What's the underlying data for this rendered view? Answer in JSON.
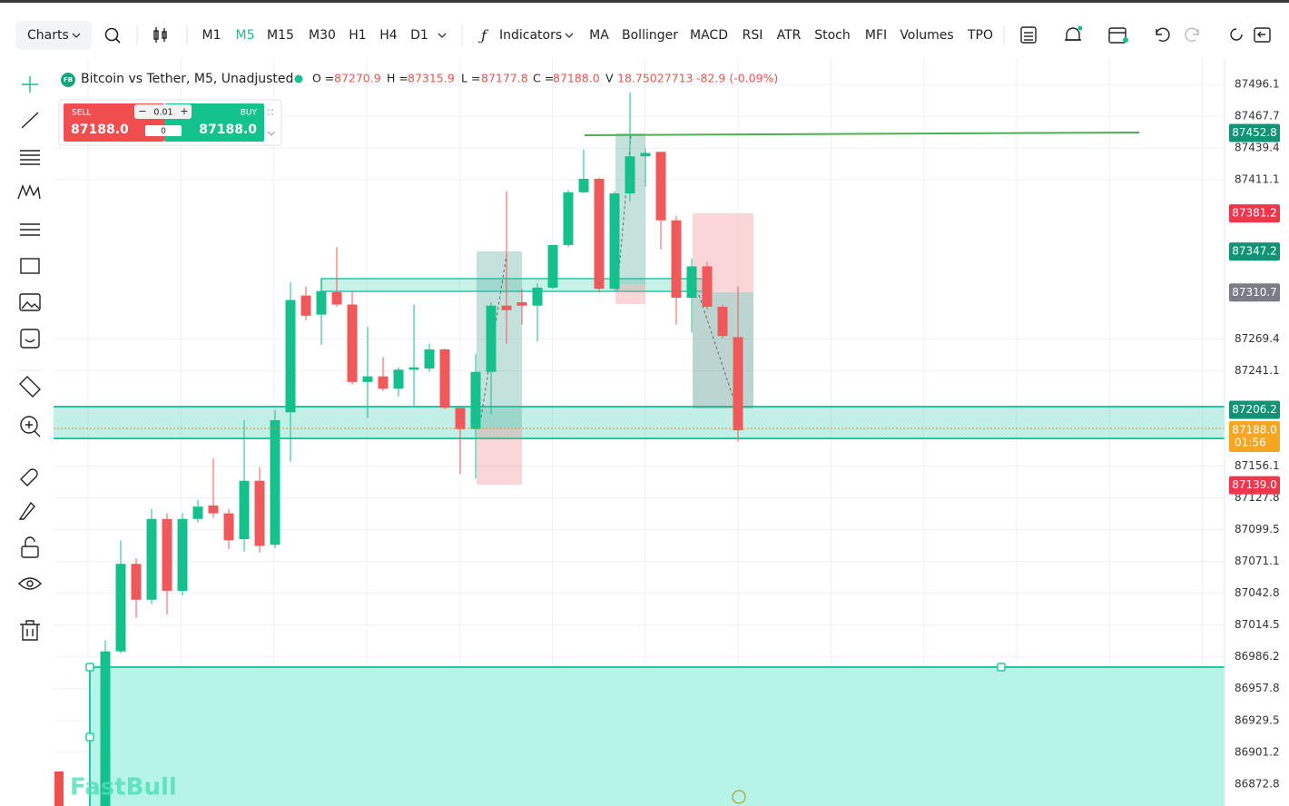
{
  "toolbar": {
    "charts": "Charts",
    "timeframes": [
      "M1",
      "M5",
      "M15",
      "M30",
      "H1",
      "H4",
      "D1"
    ],
    "active_timeframe": "M5",
    "indicators": "Indicators",
    "indicator_list": [
      "MA",
      "Bollinger",
      "MACD",
      "RSI",
      "ATR",
      "Stoch",
      "MFI",
      "Volumes",
      "TPO"
    ]
  },
  "legend": {
    "badge": "FB",
    "title": "Bitcoin vs Tether, M5, Unadjusted",
    "ohlc": [
      {
        "key": "O =",
        "value": "87270.9"
      },
      {
        "key": "H =",
        "value": "87315.9"
      },
      {
        "key": "L =",
        "value": "87177.8"
      },
      {
        "key": "C =",
        "value": "87188.0"
      }
    ],
    "volume_key": "V",
    "volume": "18.75027713",
    "change": "-82.9 (-0.09%)"
  },
  "trade": {
    "sell": "SELL",
    "sell_price": "87188.0",
    "lot": "0.01",
    "qty": "0",
    "buy": "BUY",
    "buy_price": "87188.0"
  },
  "watermark": "FastBull",
  "chart_data": {
    "type": "candlestick",
    "up_color": "#16c08c",
    "down_color": "#f0595b",
    "grid": true,
    "ylim": [
      86853.3,
      87518.7
    ],
    "yticks": [
      87496.1,
      87467.7,
      87439.4,
      87411.1,
      87269.4,
      87241.1,
      87156.1,
      87127.8,
      87099.5,
      87071.1,
      87042.8,
      87014.5,
      86986.2,
      86957.8,
      86929.5,
      86901.2,
      86872.8
    ],
    "candles": [
      {
        "o": 86853,
        "h": 87001,
        "l": 86853,
        "c": 86991
      },
      {
        "o": 86991,
        "h": 87090,
        "l": 86989,
        "c": 87069
      },
      {
        "o": 87069,
        "h": 87074,
        "l": 87021,
        "c": 87037
      },
      {
        "o": 87037,
        "h": 87118,
        "l": 87033,
        "c": 87109
      },
      {
        "o": 87109,
        "h": 87114,
        "l": 87024,
        "c": 87045
      },
      {
        "o": 87045,
        "h": 87114,
        "l": 87041,
        "c": 87109
      },
      {
        "o": 87109,
        "h": 87126,
        "l": 87106,
        "c": 87120
      },
      {
        "o": 87121,
        "h": 87163,
        "l": 87110,
        "c": 87114
      },
      {
        "o": 87114,
        "h": 87118,
        "l": 87082,
        "c": 87090
      },
      {
        "o": 87091,
        "h": 87197,
        "l": 87080,
        "c": 87143
      },
      {
        "o": 87143,
        "h": 87155,
        "l": 87079,
        "c": 87085
      },
      {
        "o": 87086,
        "h": 87206,
        "l": 87083,
        "c": 87197
      },
      {
        "o": 87204,
        "h": 87320,
        "l": 87160,
        "c": 87304
      },
      {
        "o": 87308,
        "h": 87316,
        "l": 87286,
        "c": 87290
      },
      {
        "o": 87291,
        "h": 87323,
        "l": 87264,
        "c": 87312
      },
      {
        "o": 87311,
        "h": 87351,
        "l": 87298,
        "c": 87300
      },
      {
        "o": 87300,
        "h": 87312,
        "l": 87229,
        "c": 87231
      },
      {
        "o": 87231,
        "h": 87280,
        "l": 87199,
        "c": 87236
      },
      {
        "o": 87236,
        "h": 87253,
        "l": 87223,
        "c": 87225
      },
      {
        "o": 87225,
        "h": 87244,
        "l": 87218,
        "c": 87242
      },
      {
        "o": 87242,
        "h": 87300,
        "l": 87210,
        "c": 87244
      },
      {
        "o": 87243,
        "h": 87265,
        "l": 87240,
        "c": 87260
      },
      {
        "o": 87260,
        "h": 87261,
        "l": 87207,
        "c": 87208
      },
      {
        "o": 87208,
        "h": 87208,
        "l": 87149,
        "c": 87189
      },
      {
        "o": 87189,
        "h": 87256,
        "l": 87145,
        "c": 87240
      },
      {
        "o": 87240,
        "h": 87302,
        "l": 87202,
        "c": 87299
      },
      {
        "o": 87299,
        "h": 87401,
        "l": 87265,
        "c": 87295
      },
      {
        "o": 87302,
        "h": 87314,
        "l": 87282,
        "c": 87299
      },
      {
        "o": 87299,
        "h": 87319,
        "l": 87267,
        "c": 87315
      },
      {
        "o": 87315,
        "h": 87353,
        "l": 87314,
        "c": 87353
      },
      {
        "o": 87353,
        "h": 87402,
        "l": 87351,
        "c": 87400
      },
      {
        "o": 87400,
        "h": 87438,
        "l": 87399,
        "c": 87412
      },
      {
        "o": 87412,
        "h": 87413,
        "l": 87311,
        "c": 87314
      },
      {
        "o": 87314,
        "h": 87401,
        "l": 87312,
        "c": 87399
      },
      {
        "o": 87399,
        "h": 87489,
        "l": 87392,
        "c": 87432
      },
      {
        "o": 87432,
        "h": 87439,
        "l": 87405,
        "c": 87435
      },
      {
        "o": 87436,
        "h": 87436,
        "l": 87349,
        "c": 87375
      },
      {
        "o": 87375,
        "h": 87379,
        "l": 87282,
        "c": 87306
      },
      {
        "o": 87306,
        "h": 87341,
        "l": 87275,
        "c": 87334
      },
      {
        "o": 87334,
        "h": 87338,
        "l": 87296,
        "c": 87298
      },
      {
        "o": 87298,
        "h": 87300,
        "l": 87270,
        "c": 87272
      },
      {
        "o": 87270.9,
        "h": 87315.9,
        "l": 87177.8,
        "c": 87188
      }
    ],
    "price_labels": [
      {
        "value": 87452.8,
        "color": "#109475"
      },
      {
        "value": 87381.2,
        "color": "#f0364a"
      },
      {
        "value": 87347.2,
        "color": "#109475"
      },
      {
        "value": 87310.7,
        "color": "#7a7d85"
      },
      {
        "value": 87206.2,
        "color": "#109475"
      },
      {
        "value": {
          "value": 87188,
          "label": "87188.0"
        },
        "color": "#f5a623",
        "countdown": "01:56"
      },
      {
        "value": {
          "value": 87139,
          "label": "87139.0"
        },
        "color": "#f0364a"
      }
    ]
  }
}
